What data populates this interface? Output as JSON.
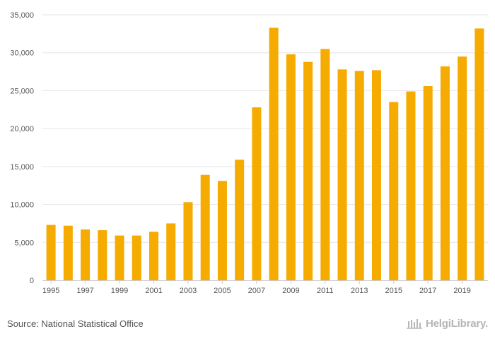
{
  "chart_data": {
    "type": "bar",
    "title": "",
    "xlabel": "",
    "ylabel": "",
    "categories": [
      "1995",
      "1996",
      "1997",
      "1998",
      "1999",
      "2000",
      "2001",
      "2002",
      "2003",
      "2004",
      "2005",
      "2006",
      "2007",
      "2008",
      "2009",
      "2010",
      "2011",
      "2012",
      "2013",
      "2014",
      "2015",
      "2016",
      "2017",
      "2018",
      "2019",
      "2020"
    ],
    "x_tick_labels": [
      "1995",
      "1997",
      "1999",
      "2001",
      "2003",
      "2005",
      "2007",
      "2009",
      "2011",
      "2013",
      "2015",
      "2017",
      "2019"
    ],
    "values": [
      7300,
      7200,
      6700,
      6600,
      5900,
      5900,
      6400,
      7500,
      10300,
      13900,
      13100,
      15900,
      22800,
      33300,
      29800,
      28800,
      30500,
      27800,
      27600,
      27700,
      23500,
      24900,
      25600,
      28200,
      29500,
      33200
    ],
    "ylim": [
      0,
      35000
    ],
    "y_ticks": [
      0,
      5000,
      10000,
      15000,
      20000,
      25000,
      30000,
      35000
    ],
    "y_tick_labels": [
      "0",
      "5,000",
      "10,000",
      "15,000",
      "20,000",
      "25,000",
      "30,000",
      "35,000"
    ],
    "grid": true,
    "bar_color": "#f5ab00"
  },
  "footer": {
    "source": "Source: National Statistical Office",
    "brand": "HelgiLibrary."
  },
  "colors": {
    "grid": "#e6e6e6",
    "axis": "#cccccc",
    "brand": "#b5b5b5"
  }
}
